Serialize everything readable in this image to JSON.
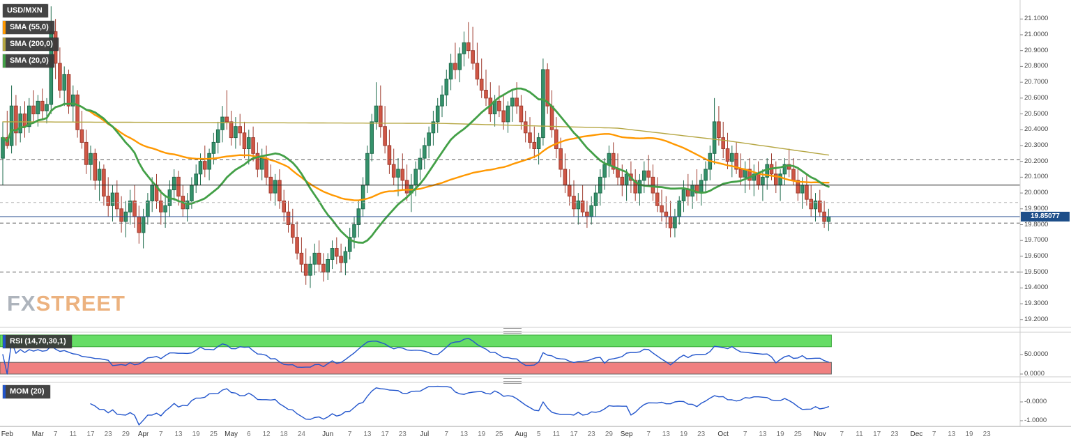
{
  "watermark": {
    "fx": "FX",
    "street": "STREET"
  },
  "chart_data": {
    "type": "candlestick",
    "symbol": "USD/MXN",
    "timeframe_span": "Feb - Dec",
    "price_range": [
      19.155,
      21.22
    ],
    "y_ticks": [
      21.1,
      21.0,
      20.9,
      20.8,
      20.7,
      20.6,
      20.5,
      20.4,
      20.3,
      20.2,
      20.1,
      20.0,
      19.9,
      19.8,
      19.7,
      19.6,
      19.5,
      19.4,
      19.3,
      19.2
    ],
    "last_price": 19.85077,
    "last_price_label": "19.85077",
    "levels": [
      {
        "value": 20.21,
        "style": "dashed"
      },
      {
        "value": 20.05,
        "style": "solid"
      },
      {
        "value": 19.94,
        "style": "dashed-light"
      },
      {
        "value": 19.85077,
        "style": "price"
      },
      {
        "value": 19.81,
        "style": "dashed"
      },
      {
        "value": 19.5,
        "style": "dashed"
      }
    ],
    "overlays": [
      {
        "key": "sma55",
        "name": "SMA (55,0)",
        "window": 55,
        "color_key": "sma55",
        "width": 2.4
      },
      {
        "key": "sma200",
        "name": "SMA (200,0)",
        "anchors": [
          [
            0,
            20.45
          ],
          [
            100,
            20.44
          ],
          [
            140,
            20.41
          ],
          [
            165,
            20.33
          ],
          [
            188,
            20.24
          ]
        ],
        "color_key": "sma200",
        "width": 1.4
      },
      {
        "key": "sma20",
        "name": "SMA (20,0)",
        "window": 20,
        "color_key": "sma20",
        "width": 2.8
      }
    ],
    "indicators": [
      {
        "key": "rsi",
        "name": "RSI (14,70,30,1)",
        "period": 14,
        "upper": 70,
        "lower": 30,
        "range": [
          0,
          100
        ],
        "tick_values": [
          50,
          0
        ],
        "tick_labels": [
          "50.0000",
          "0.0000"
        ]
      },
      {
        "key": "mom",
        "name": "MOM (20)",
        "period": 20,
        "range": [
          1.2,
          -1.3
        ],
        "tick_values": [
          0,
          -1
        ],
        "tick_labels": [
          "-0.0000",
          "-1.0000"
        ]
      }
    ],
    "colors": {
      "up_fill": "#35926b",
      "up_stroke": "#1e6b4c",
      "down_fill": "#d05746",
      "down_stroke": "#9e3b2e",
      "sma55": "#ff9800",
      "sma200": "#b5a642",
      "sma20": "#43a047",
      "indicator_line": "#2255cc",
      "rsi_upper_band": "#66dd66",
      "rsi_lower_band": "#f08080",
      "price_line": "#234a8c",
      "badge_bg": "#1d4e89",
      "level_dark": "#555555",
      "level_light": "#b5b5b5",
      "level_solid": "#222222",
      "axis_text": "#444444"
    },
    "x_ticks": [
      {
        "l": "Feb",
        "i": 1
      },
      {
        "l": "Mar",
        "i": 8
      },
      {
        "l": "7",
        "i": 12
      },
      {
        "l": "11",
        "i": 16
      },
      {
        "l": "17",
        "i": 20
      },
      {
        "l": "23",
        "i": 24
      },
      {
        "l": "29",
        "i": 28
      },
      {
        "l": "Apr",
        "i": 32
      },
      {
        "l": "7",
        "i": 36
      },
      {
        "l": "13",
        "i": 40
      },
      {
        "l": "19",
        "i": 44
      },
      {
        "l": "25",
        "i": 48
      },
      {
        "l": "May",
        "i": 52
      },
      {
        "l": "6",
        "i": 56
      },
      {
        "l": "12",
        "i": 60
      },
      {
        "l": "18",
        "i": 64
      },
      {
        "l": "24",
        "i": 68
      },
      {
        "l": "Jun",
        "i": 74
      },
      {
        "l": "7",
        "i": 79
      },
      {
        "l": "13",
        "i": 83
      },
      {
        "l": "17",
        "i": 87
      },
      {
        "l": "23",
        "i": 91
      },
      {
        "l": "Jul",
        "i": 96
      },
      {
        "l": "7",
        "i": 101
      },
      {
        "l": "13",
        "i": 105
      },
      {
        "l": "19",
        "i": 109
      },
      {
        "l": "25",
        "i": 113
      },
      {
        "l": "Aug",
        "i": 118
      },
      {
        "l": "5",
        "i": 122
      },
      {
        "l": "11",
        "i": 126
      },
      {
        "l": "17",
        "i": 130
      },
      {
        "l": "23",
        "i": 134
      },
      {
        "l": "29",
        "i": 138
      },
      {
        "l": "Sep",
        "i": 142
      },
      {
        "l": "7",
        "i": 147
      },
      {
        "l": "13",
        "i": 151
      },
      {
        "l": "19",
        "i": 155
      },
      {
        "l": "23",
        "i": 159
      },
      {
        "l": "Oct",
        "i": 164
      },
      {
        "l": "7",
        "i": 169
      },
      {
        "l": "13",
        "i": 173
      },
      {
        "l": "19",
        "i": 177
      },
      {
        "l": "25",
        "i": 181
      },
      {
        "l": "Nov",
        "i": 186
      },
      {
        "l": "7",
        "i": 191
      },
      {
        "l": "11",
        "i": 195
      },
      {
        "l": "17",
        "i": 199
      },
      {
        "l": "23",
        "i": 203
      },
      {
        "l": "Dec",
        "i": 208
      },
      {
        "l": "7",
        "i": 212
      },
      {
        "l": "13",
        "i": 216
      },
      {
        "l": "19",
        "i": 220
      },
      {
        "l": "23",
        "i": 224
      }
    ],
    "candles": [
      [
        20.22,
        20.45,
        20.05,
        20.35
      ],
      [
        20.35,
        20.52,
        20.28,
        20.3
      ],
      [
        20.3,
        20.68,
        20.25,
        20.55
      ],
      [
        20.55,
        20.62,
        20.3,
        20.38
      ],
      [
        20.38,
        20.55,
        20.32,
        20.5
      ],
      [
        20.5,
        20.58,
        20.35,
        20.42
      ],
      [
        20.42,
        20.6,
        20.38,
        20.55
      ],
      [
        20.55,
        20.65,
        20.45,
        20.5
      ],
      [
        20.5,
        20.62,
        20.42,
        20.58
      ],
      [
        20.58,
        20.66,
        20.46,
        20.52
      ],
      [
        20.52,
        20.6,
        20.44,
        20.56
      ],
      [
        20.56,
        21.18,
        20.5,
        21.02
      ],
      [
        21.02,
        21.1,
        20.72,
        20.82
      ],
      [
        20.82,
        20.92,
        20.6,
        20.65
      ],
      [
        20.65,
        20.8,
        20.55,
        20.75
      ],
      [
        20.75,
        20.78,
        20.5,
        20.55
      ],
      [
        20.55,
        20.68,
        20.45,
        20.62
      ],
      [
        20.62,
        20.65,
        20.35,
        20.4
      ],
      [
        20.4,
        20.52,
        20.28,
        20.32
      ],
      [
        20.32,
        20.4,
        20.12,
        20.18
      ],
      [
        20.18,
        20.3,
        20.08,
        20.25
      ],
      [
        20.25,
        20.28,
        20.02,
        20.08
      ],
      [
        20.08,
        20.2,
        19.95,
        20.15
      ],
      [
        20.15,
        20.18,
        19.92,
        19.98
      ],
      [
        19.98,
        20.1,
        19.85,
        19.92
      ],
      [
        19.92,
        20.05,
        19.82,
        20.0
      ],
      [
        20.0,
        20.08,
        19.85,
        19.9
      ],
      [
        19.9,
        19.98,
        19.75,
        19.82
      ],
      [
        19.82,
        19.95,
        19.72,
        19.88
      ],
      [
        19.88,
        20.02,
        19.8,
        19.95
      ],
      [
        19.95,
        20.05,
        19.78,
        19.85
      ],
      [
        19.85,
        19.92,
        19.68,
        19.75
      ],
      [
        19.75,
        19.9,
        19.65,
        19.85
      ],
      [
        19.85,
        20.0,
        19.8,
        19.95
      ],
      [
        19.95,
        20.1,
        19.88,
        20.05
      ],
      [
        20.05,
        20.12,
        19.9,
        19.95
      ],
      [
        19.95,
        20.02,
        19.8,
        19.88
      ],
      [
        19.88,
        19.98,
        19.78,
        19.92
      ],
      [
        19.92,
        20.08,
        19.85,
        20.02
      ],
      [
        20.02,
        20.15,
        19.95,
        20.1
      ],
      [
        20.1,
        20.14,
        19.92,
        19.98
      ],
      [
        19.98,
        20.05,
        19.85,
        19.9
      ],
      [
        19.9,
        20.0,
        19.82,
        19.95
      ],
      [
        19.95,
        20.1,
        19.9,
        20.05
      ],
      [
        20.05,
        20.18,
        20.0,
        20.12
      ],
      [
        20.12,
        20.25,
        20.05,
        20.2
      ],
      [
        20.2,
        20.3,
        20.1,
        20.15
      ],
      [
        20.15,
        20.28,
        20.08,
        20.25
      ],
      [
        20.25,
        20.38,
        20.18,
        20.32
      ],
      [
        20.32,
        20.45,
        20.25,
        20.4
      ],
      [
        20.4,
        20.55,
        20.32,
        20.48
      ],
      [
        20.48,
        20.65,
        20.4,
        20.45
      ],
      [
        20.45,
        20.52,
        20.3,
        20.35
      ],
      [
        20.35,
        20.48,
        20.28,
        20.42
      ],
      [
        20.42,
        20.5,
        20.3,
        20.38
      ],
      [
        20.38,
        20.45,
        20.22,
        20.28
      ],
      [
        20.28,
        20.4,
        20.18,
        20.35
      ],
      [
        20.35,
        20.42,
        20.2,
        20.25
      ],
      [
        20.25,
        20.32,
        20.1,
        20.15
      ],
      [
        20.15,
        20.28,
        20.08,
        20.22
      ],
      [
        20.22,
        20.3,
        20.05,
        20.1
      ],
      [
        20.1,
        20.18,
        19.95,
        20.0
      ],
      [
        20.0,
        20.12,
        19.92,
        20.08
      ],
      [
        20.08,
        20.15,
        19.9,
        19.95
      ],
      [
        19.95,
        20.02,
        19.82,
        19.88
      ],
      [
        19.88,
        19.95,
        19.75,
        19.8
      ],
      [
        19.8,
        19.9,
        19.68,
        19.72
      ],
      [
        19.72,
        19.82,
        19.58,
        19.62
      ],
      [
        19.62,
        19.72,
        19.5,
        19.55
      ],
      [
        19.55,
        19.65,
        19.42,
        19.48
      ],
      [
        19.48,
        19.6,
        19.4,
        19.55
      ],
      [
        19.55,
        19.68,
        19.48,
        19.62
      ],
      [
        19.62,
        19.7,
        19.5,
        19.55
      ],
      [
        19.55,
        19.62,
        19.44,
        19.5
      ],
      [
        19.5,
        19.62,
        19.45,
        19.58
      ],
      [
        19.58,
        19.7,
        19.52,
        19.65
      ],
      [
        19.65,
        19.72,
        19.55,
        19.6
      ],
      [
        19.6,
        19.68,
        19.5,
        19.56
      ],
      [
        19.56,
        19.66,
        19.48,
        19.63
      ],
      [
        19.63,
        19.78,
        19.58,
        19.72
      ],
      [
        19.72,
        19.85,
        19.65,
        19.8
      ],
      [
        19.8,
        19.95,
        19.72,
        19.9
      ],
      [
        19.9,
        20.1,
        19.85,
        20.05
      ],
      [
        20.05,
        20.3,
        20.0,
        20.25
      ],
      [
        20.25,
        20.5,
        20.2,
        20.45
      ],
      [
        20.45,
        20.7,
        20.4,
        20.55
      ],
      [
        20.55,
        20.68,
        20.35,
        20.42
      ],
      [
        20.42,
        20.55,
        20.25,
        20.3
      ],
      [
        20.3,
        20.4,
        20.12,
        20.18
      ],
      [
        20.18,
        20.28,
        20.05,
        20.1
      ],
      [
        20.1,
        20.22,
        19.98,
        20.15
      ],
      [
        20.15,
        20.25,
        20.02,
        20.08
      ],
      [
        20.08,
        20.18,
        19.95,
        20.0
      ],
      [
        20.0,
        20.12,
        19.88,
        20.05
      ],
      [
        20.05,
        20.2,
        19.98,
        20.15
      ],
      [
        20.15,
        20.28,
        20.08,
        20.22
      ],
      [
        20.22,
        20.35,
        20.15,
        20.3
      ],
      [
        20.3,
        20.42,
        20.22,
        20.38
      ],
      [
        20.38,
        20.52,
        20.3,
        20.45
      ],
      [
        20.45,
        20.6,
        20.38,
        20.55
      ],
      [
        20.55,
        20.68,
        20.48,
        20.62
      ],
      [
        20.62,
        20.78,
        20.55,
        20.72
      ],
      [
        20.72,
        20.88,
        20.65,
        20.82
      ],
      [
        20.82,
        20.95,
        20.72,
        20.78
      ],
      [
        20.78,
        20.92,
        20.7,
        20.88
      ],
      [
        20.88,
        21.02,
        20.8,
        20.95
      ],
      [
        20.95,
        21.08,
        20.85,
        20.9
      ],
      [
        20.9,
        21.05,
        20.78,
        20.82
      ],
      [
        20.82,
        20.95,
        20.68,
        20.72
      ],
      [
        20.72,
        20.85,
        20.6,
        20.65
      ],
      [
        20.65,
        20.78,
        20.55,
        20.6
      ],
      [
        20.6,
        20.7,
        20.45,
        20.5
      ],
      [
        20.5,
        20.62,
        20.42,
        20.58
      ],
      [
        20.58,
        20.68,
        20.48,
        20.52
      ],
      [
        20.52,
        20.62,
        20.4,
        20.45
      ],
      [
        20.45,
        20.58,
        20.38,
        20.55
      ],
      [
        20.55,
        20.65,
        20.45,
        20.6
      ],
      [
        20.6,
        20.7,
        20.5,
        20.55
      ],
      [
        20.55,
        20.62,
        20.4,
        20.45
      ],
      [
        20.45,
        20.52,
        20.32,
        20.38
      ],
      [
        20.38,
        20.48,
        20.28,
        20.32
      ],
      [
        20.32,
        20.42,
        20.22,
        20.28
      ],
      [
        20.28,
        20.38,
        20.18,
        20.35
      ],
      [
        20.35,
        20.85,
        20.3,
        20.78
      ],
      [
        20.78,
        20.82,
        20.5,
        20.55
      ],
      [
        20.55,
        20.65,
        20.35,
        20.4
      ],
      [
        20.4,
        20.48,
        20.22,
        20.28
      ],
      [
        20.28,
        20.35,
        20.1,
        20.15
      ],
      [
        20.15,
        20.25,
        20.0,
        20.05
      ],
      [
        20.05,
        20.15,
        19.92,
        19.98
      ],
      [
        19.98,
        20.08,
        19.85,
        19.9
      ],
      [
        19.9,
        20.0,
        19.8,
        19.95
      ],
      [
        19.95,
        20.05,
        19.85,
        19.88
      ],
      [
        19.88,
        19.95,
        19.78,
        19.85
      ],
      [
        19.85,
        19.98,
        19.8,
        19.92
      ],
      [
        19.92,
        20.05,
        19.85,
        20.0
      ],
      [
        20.0,
        20.15,
        19.92,
        20.1
      ],
      [
        20.1,
        20.22,
        20.02,
        20.18
      ],
      [
        20.18,
        20.3,
        20.1,
        20.25
      ],
      [
        20.25,
        20.32,
        20.12,
        20.15
      ],
      [
        20.15,
        20.25,
        20.05,
        20.1
      ],
      [
        20.1,
        20.18,
        19.98,
        20.05
      ],
      [
        20.05,
        20.15,
        19.95,
        20.12
      ],
      [
        20.12,
        20.2,
        20.0,
        20.08
      ],
      [
        20.08,
        20.15,
        19.95,
        20.0
      ],
      [
        20.0,
        20.12,
        19.92,
        20.08
      ],
      [
        20.08,
        20.2,
        20.0,
        20.14
      ],
      [
        20.14,
        20.24,
        20.04,
        20.1
      ],
      [
        20.1,
        20.18,
        19.95,
        20.0
      ],
      [
        20.0,
        20.1,
        19.88,
        19.92
      ],
      [
        19.92,
        20.02,
        19.82,
        19.88
      ],
      [
        19.88,
        19.98,
        19.78,
        19.85
      ],
      [
        19.85,
        19.95,
        19.72,
        19.78
      ],
      [
        19.78,
        19.9,
        19.72,
        19.85
      ],
      [
        19.85,
        19.98,
        19.8,
        19.95
      ],
      [
        19.95,
        20.08,
        19.88,
        20.02
      ],
      [
        20.02,
        20.12,
        19.92,
        19.98
      ],
      [
        19.98,
        20.08,
        19.9,
        20.05
      ],
      [
        20.05,
        20.15,
        19.95,
        20.0
      ],
      [
        20.0,
        20.12,
        19.92,
        20.08
      ],
      [
        20.08,
        20.2,
        20.0,
        20.15
      ],
      [
        20.15,
        20.3,
        20.08,
        20.25
      ],
      [
        20.25,
        20.6,
        20.18,
        20.45
      ],
      [
        20.45,
        20.55,
        20.3,
        20.35
      ],
      [
        20.35,
        20.45,
        20.22,
        20.28
      ],
      [
        20.28,
        20.38,
        20.15,
        20.2
      ],
      [
        20.2,
        20.3,
        20.1,
        20.25
      ],
      [
        20.25,
        20.32,
        20.12,
        20.15
      ],
      [
        20.15,
        20.25,
        20.05,
        20.1
      ],
      [
        20.1,
        20.2,
        20.0,
        20.15
      ],
      [
        20.15,
        20.22,
        20.02,
        20.08
      ],
      [
        20.08,
        20.18,
        19.98,
        20.12
      ],
      [
        20.12,
        20.2,
        20.02,
        20.05
      ],
      [
        20.05,
        20.15,
        19.95,
        20.1
      ],
      [
        20.1,
        20.22,
        20.02,
        20.18
      ],
      [
        20.18,
        20.25,
        20.08,
        20.12
      ],
      [
        20.12,
        20.2,
        20.0,
        20.05
      ],
      [
        20.05,
        20.15,
        19.95,
        20.12
      ],
      [
        20.12,
        20.22,
        20.05,
        20.18
      ],
      [
        20.18,
        20.28,
        20.1,
        20.15
      ],
      [
        20.15,
        20.22,
        20.05,
        20.08
      ],
      [
        20.08,
        20.15,
        19.95,
        20.0
      ],
      [
        20.0,
        20.1,
        19.9,
        20.05
      ],
      [
        20.05,
        20.12,
        19.92,
        19.96
      ],
      [
        19.96,
        20.05,
        19.85,
        19.9
      ],
      [
        19.9,
        20.0,
        19.82,
        19.95
      ],
      [
        19.95,
        20.02,
        19.85,
        19.88
      ],
      [
        19.88,
        19.95,
        19.78,
        19.82
      ],
      [
        19.82,
        19.9,
        19.76,
        19.85
      ]
    ]
  }
}
